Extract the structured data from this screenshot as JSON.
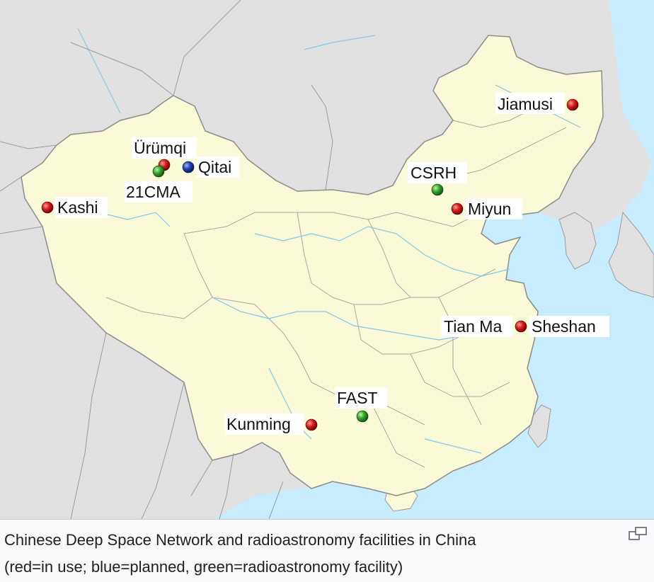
{
  "caption": {
    "line1": "Chinese Deep Space Network and radioastronomy facilities in China",
    "line2": "(red=in use; blue=planned, green=radioastronomy facility)"
  },
  "legend_colors": {
    "in_use": "#c81414",
    "planned": "#1e3ca8",
    "radioastronomy": "#2da82d"
  },
  "places": [
    {
      "name": "Jiamusi",
      "status": "in_use"
    },
    {
      "name": "Ürümqi",
      "status": "in_use"
    },
    {
      "name": "Qitai",
      "status": "planned"
    },
    {
      "name": "21CMA",
      "status": "radioastronomy"
    },
    {
      "name": "CSRH",
      "status": "radioastronomy"
    },
    {
      "name": "Kashi",
      "status": "in_use"
    },
    {
      "name": "Miyun",
      "status": "in_use"
    },
    {
      "name": "Tian Ma",
      "status": "in_use"
    },
    {
      "name": "Sheshan",
      "status": "in_use"
    },
    {
      "name": "FAST",
      "status": "radioastronomy"
    },
    {
      "name": "Kunming",
      "status": "in_use"
    }
  ],
  "enlarge_icon": "enlarge-icon"
}
